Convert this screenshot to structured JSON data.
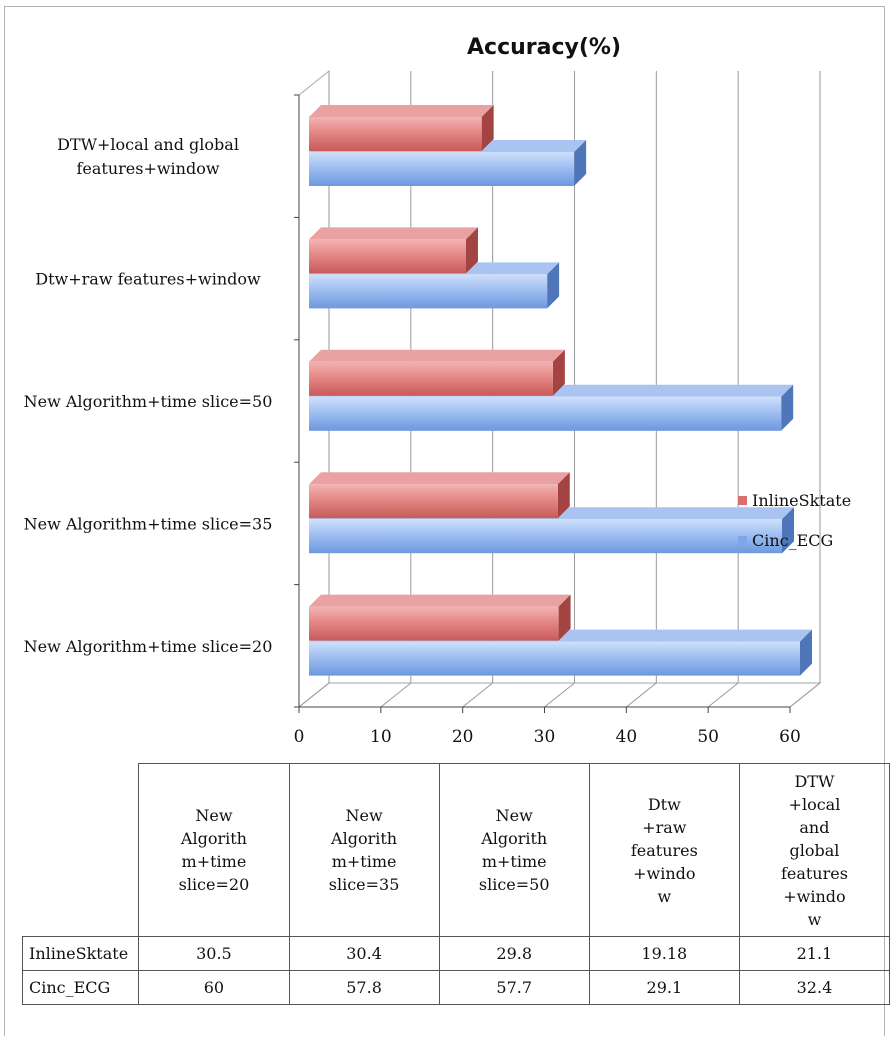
{
  "chart_data": {
    "type": "bar",
    "orientation": "horizontal",
    "title": "Accuracy(%)",
    "categories": [
      "New Algorithm+time slice=20",
      "New Algorithm+time slice=35",
      "New Algorithm+time slice=50",
      "Dtw+raw features+window",
      "DTW+local and global features+window"
    ],
    "category_label_lines": [
      [
        "New Algorithm+time slice=20"
      ],
      [
        "New Algorithm+time slice=35"
      ],
      [
        "New Algorithm+time slice=50"
      ],
      [
        "Dtw+raw features+window"
      ],
      [
        "DTW+local and global",
        "features+window"
      ]
    ],
    "series": [
      {
        "name": "InlineSktate",
        "color": "#d9706f",
        "values": [
          30.5,
          30.4,
          29.8,
          19.18,
          21.1
        ]
      },
      {
        "name": "Cinc_ECG",
        "color": "#7fa6e6",
        "values": [
          60,
          57.8,
          57.7,
          29.1,
          32.4
        ]
      }
    ],
    "xlim": [
      0,
      60
    ],
    "xticks": [
      "0",
      "10",
      "20",
      "30",
      "40",
      "50",
      "60"
    ],
    "grid": true,
    "legend": "right",
    "three_d": true
  },
  "table": {
    "columns": [
      [
        "New",
        "Algorith",
        "m+time",
        "slice=20"
      ],
      [
        "New",
        "Algorith",
        "m+time",
        "slice=35"
      ],
      [
        "New",
        "Algorith",
        "m+time",
        "slice=50"
      ],
      [
        "Dtw",
        "+raw",
        "features",
        "+windo",
        "w"
      ],
      [
        "DTW",
        "+local",
        "and",
        "global",
        "features",
        "+windo",
        "w"
      ]
    ],
    "rows": [
      {
        "label": "InlineSktate",
        "values": [
          "30.5",
          "30.4",
          "29.8",
          "19.18",
          "21.1"
        ]
      },
      {
        "label": "Cinc_ECG",
        "values": [
          "60",
          "57.8",
          "57.7",
          "29.1",
          "32.4"
        ]
      }
    ]
  }
}
